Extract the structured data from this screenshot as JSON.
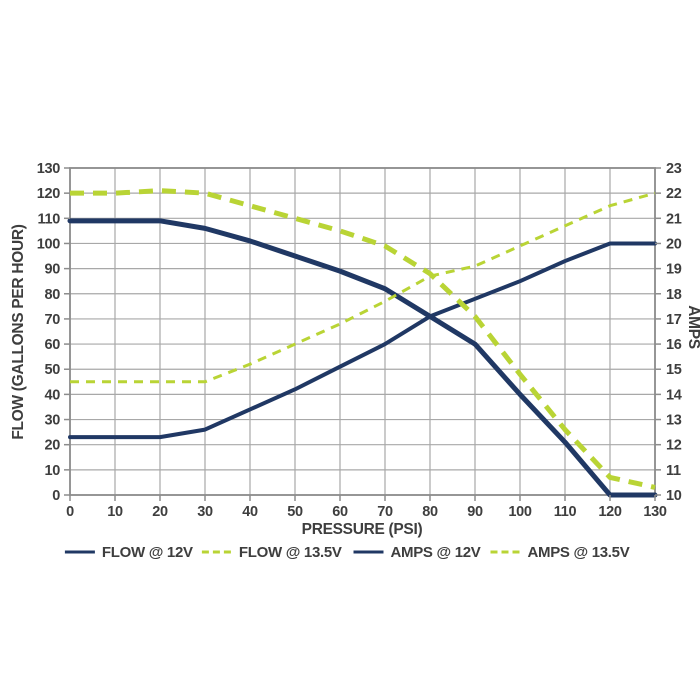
{
  "chart_data": {
    "type": "line",
    "title": "",
    "xlabel": "PRESSURE (PSI)",
    "ylabel_left": "FLOW (GALLONS PER HOUR)",
    "ylabel_right": "AMPS",
    "grid": true,
    "legend_position": "bottom",
    "xlim": [
      0,
      130
    ],
    "ylim_left": [
      0,
      130
    ],
    "ylim_right": [
      10,
      23
    ],
    "x_ticks": [
      0,
      10,
      20,
      30,
      40,
      50,
      60,
      70,
      80,
      90,
      100,
      110,
      120,
      130
    ],
    "y_ticks_left": [
      0,
      10,
      20,
      30,
      40,
      50,
      60,
      70,
      80,
      90,
      100,
      110,
      120,
      130
    ],
    "y_ticks_right": [
      10,
      11,
      12,
      13,
      14,
      15,
      16,
      17,
      18,
      19,
      20,
      21,
      22,
      23
    ],
    "x": [
      0,
      10,
      20,
      30,
      40,
      50,
      60,
      70,
      80,
      90,
      100,
      110,
      120,
      130
    ],
    "series": [
      {
        "name": "FLOW @ 12V",
        "axis": "left",
        "color_key": "navy",
        "dash": "solid",
        "width": 5,
        "values": [
          109,
          109,
          109,
          106,
          101,
          95,
          89,
          82,
          71,
          60,
          40,
          21,
          0,
          0
        ]
      },
      {
        "name": "FLOW @ 13.5V",
        "axis": "left",
        "color_key": "green",
        "dash": "long",
        "width": 5,
        "values": [
          120,
          120,
          121,
          120,
          115,
          110,
          105,
          99,
          88,
          71,
          48,
          26,
          7,
          3
        ]
      },
      {
        "name": "AMPS @ 12V",
        "axis": "right",
        "color_key": "navy",
        "dash": "solid",
        "width": 4,
        "values": [
          12.3,
          12.3,
          12.3,
          12.6,
          13.4,
          14.2,
          15.1,
          16.0,
          17.1,
          17.8,
          18.5,
          19.3,
          20,
          20
        ]
      },
      {
        "name": "AMPS @ 13.5V",
        "axis": "right",
        "color_key": "green",
        "dash": "short",
        "width": 3,
        "values": [
          14.5,
          14.5,
          14.5,
          14.5,
          15.2,
          16.0,
          16.8,
          17.7,
          18.7,
          19.1,
          19.9,
          20.7,
          21.5,
          22
        ]
      }
    ]
  },
  "colors": {
    "navy": "#203864",
    "green": "#b9d435",
    "grid": "#a8a8a8",
    "axis": "#8c8c8c",
    "text": "#3e3e3e",
    "background": "#ffffff"
  },
  "legend": {
    "items": [
      "FLOW @ 12V",
      "FLOW @ 13.5V",
      "AMPS @ 12V",
      "AMPS @ 13.5V"
    ]
  }
}
